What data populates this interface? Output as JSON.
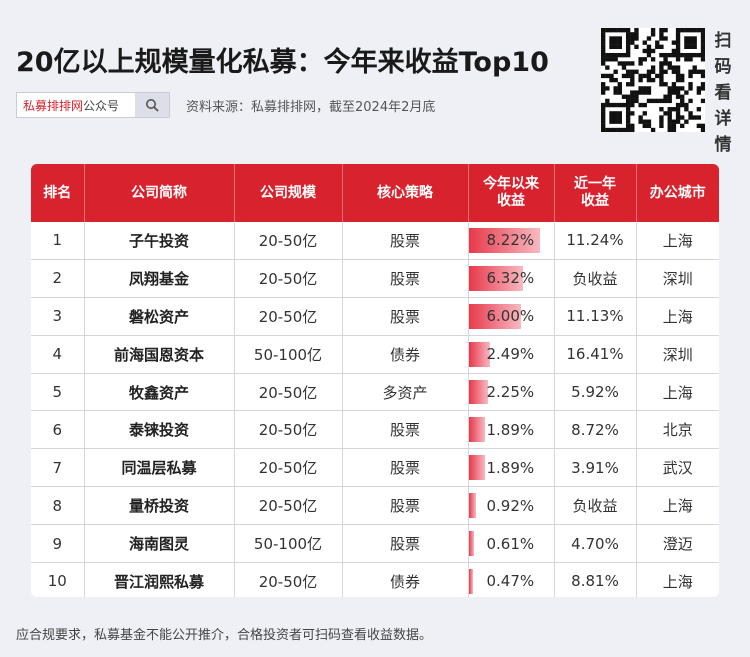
{
  "header": {
    "title": "20亿以上规模量化私募：今年来收益Top10",
    "search_brand": "私募排排网",
    "search_account": "公众号",
    "source": "资料来源：私募排排网，截至2024年2月底",
    "scan_text": [
      "扫",
      "码",
      "看",
      "详",
      "情"
    ]
  },
  "table": {
    "headers": [
      "排名",
      "公司简称",
      "公司规模",
      "核心策略",
      "今年以来\n收益",
      "近一年\n收益",
      "办公城市"
    ],
    "rows": [
      {
        "rank": "1",
        "name": "子午投资",
        "scale": "20-50亿",
        "strategy": "股票",
        "ytd": "8.22%",
        "ytd_value": 8.22,
        "year": "11.24%",
        "city": "上海"
      },
      {
        "rank": "2",
        "name": "凤翔基金",
        "scale": "20-50亿",
        "strategy": "股票",
        "ytd": "6.32%",
        "ytd_value": 6.32,
        "year": "负收益",
        "city": "深圳"
      },
      {
        "rank": "3",
        "name": "磐松资产",
        "scale": "20-50亿",
        "strategy": "股票",
        "ytd": "6.00%",
        "ytd_value": 6.0,
        "year": "11.13%",
        "city": "上海"
      },
      {
        "rank": "4",
        "name": "前海国恩资本",
        "scale": "50-100亿",
        "strategy": "债券",
        "ytd": "2.49%",
        "ytd_value": 2.49,
        "year": "16.41%",
        "city": "深圳"
      },
      {
        "rank": "5",
        "name": "牧鑫资产",
        "scale": "20-50亿",
        "strategy": "多资产",
        "ytd": "2.25%",
        "ytd_value": 2.25,
        "year": "5.92%",
        "city": "上海"
      },
      {
        "rank": "6",
        "name": "泰铼投资",
        "scale": "20-50亿",
        "strategy": "股票",
        "ytd": "1.89%",
        "ytd_value": 1.89,
        "year": "8.72%",
        "city": "北京"
      },
      {
        "rank": "7",
        "name": "同温层私募",
        "scale": "20-50亿",
        "strategy": "股票",
        "ytd": "1.89%",
        "ytd_value": 1.89,
        "year": "3.91%",
        "city": "武汉"
      },
      {
        "rank": "8",
        "name": "量桥投资",
        "scale": "20-50亿",
        "strategy": "股票",
        "ytd": "0.92%",
        "ytd_value": 0.92,
        "year": "负收益",
        "city": "上海"
      },
      {
        "rank": "9",
        "name": "海南图灵",
        "scale": "50-100亿",
        "strategy": "股票",
        "ytd": "0.61%",
        "ytd_value": 0.61,
        "year": "4.70%",
        "city": "澄迈"
      },
      {
        "rank": "10",
        "name": "晋江润熙私募",
        "scale": "20-50亿",
        "strategy": "债券",
        "ytd": "0.47%",
        "ytd_value": 0.47,
        "year": "8.81%",
        "city": "上海"
      }
    ]
  },
  "footer": {
    "note": "应合规要求，私募基金不能公开推介，合格投资者可扫码查看收益数据。"
  },
  "colors": {
    "accent": "#d8222d",
    "bar_start": "#e8394a",
    "bar_end": "#f7b9c1",
    "background": "#eef0f6"
  },
  "icons": {
    "search": "search-icon",
    "qr": "qr-code-icon"
  }
}
